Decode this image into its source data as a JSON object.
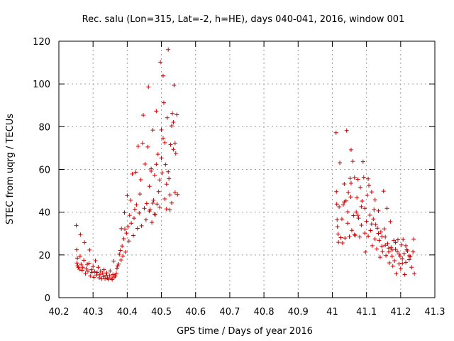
{
  "chart_data": {
    "type": "scatter",
    "title": "Rec. salu (Lon=315, Lat=-2, h=HE), days 040-041, 2016, window 001",
    "xlabel": "GPS time / Days of year 2016",
    "ylabel": "STEC from uqrg / TECUs",
    "xlim": [
      40.2,
      41.3
    ],
    "ylim": [
      0,
      120
    ],
    "xticks": [
      40.2,
      40.3,
      40.4,
      40.5,
      40.6,
      40.7,
      40.8,
      40.9,
      41,
      41.1,
      41.2,
      41.3
    ],
    "xtick_labels": [
      "40.2",
      "40.3",
      "40.4",
      "40.5",
      "40.6",
      "40.7",
      "40.8",
      "40.9",
      "41",
      "41.1",
      "41.2",
      "41.3"
    ],
    "yticks": [
      0,
      20,
      40,
      60,
      80,
      100,
      120
    ],
    "ytick_labels": [
      "0",
      "20",
      "40",
      "60",
      "80",
      "100",
      "120"
    ],
    "grid": true,
    "marker": "+",
    "series": [
      {
        "color": "#cc0000",
        "points": [
          [
            40.251,
            33.8
          ],
          [
            40.252,
            22.4
          ],
          [
            40.254,
            18.5
          ],
          [
            40.253,
            16.2
          ],
          [
            40.255,
            14.9
          ],
          [
            40.257,
            14.2
          ],
          [
            40.26,
            13.3
          ],
          [
            40.262,
            19.4
          ],
          [
            40.263,
            29.5
          ],
          [
            40.265,
            15.6
          ],
          [
            40.268,
            12.8
          ],
          [
            40.27,
            14.2
          ],
          [
            40.273,
            17.5
          ],
          [
            40.275,
            25.8
          ],
          [
            40.278,
            11.3
          ],
          [
            40.28,
            13.5
          ],
          [
            40.283,
            15.6
          ],
          [
            40.285,
            12.4
          ],
          [
            40.288,
            16.1
          ],
          [
            40.29,
            22.3
          ],
          [
            40.292,
            10.2
          ],
          [
            40.295,
            13.1
          ],
          [
            40.297,
            11.8
          ],
          [
            40.3,
            14.6
          ],
          [
            40.302,
            9.5
          ],
          [
            40.305,
            12.2
          ],
          [
            40.307,
            17.3
          ],
          [
            40.31,
            10.6
          ],
          [
            40.312,
            11.8
          ],
          [
            40.315,
            14.2
          ],
          [
            40.318,
            9.3
          ],
          [
            40.32,
            10.7
          ],
          [
            40.322,
            12.4
          ],
          [
            40.325,
            8.8
          ],
          [
            40.328,
            11.5
          ],
          [
            40.33,
            9.9
          ],
          [
            40.332,
            13.1
          ],
          [
            40.335,
            8.9
          ],
          [
            40.338,
            10.4
          ],
          [
            40.34,
            11.6
          ],
          [
            40.342,
            9.2
          ],
          [
            40.345,
            8.6
          ],
          [
            40.348,
            10.3
          ],
          [
            40.35,
            12.5
          ],
          [
            40.353,
            9.1
          ],
          [
            40.356,
            8.5
          ],
          [
            40.358,
            10.8
          ],
          [
            40.36,
            17.1
          ],
          [
            40.362,
            9.6
          ],
          [
            40.365,
            10.2
          ],
          [
            40.368,
            11.4
          ],
          [
            40.37,
            13.8
          ],
          [
            40.372,
            14.9
          ],
          [
            40.375,
            15.7
          ],
          [
            40.377,
            20.3
          ],
          [
            40.38,
            22.1
          ],
          [
            40.382,
            17.6
          ],
          [
            40.385,
            24.2
          ],
          [
            40.383,
            32.3
          ],
          [
            40.387,
            19.5
          ],
          [
            40.39,
            27.6
          ],
          [
            40.392,
            39.8
          ],
          [
            40.393,
            32.1
          ],
          [
            40.395,
            21.3
          ],
          [
            40.398,
            30.2
          ],
          [
            40.4,
            47.8
          ],
          [
            40.402,
            33.2
          ],
          [
            40.405,
            26.5
          ],
          [
            40.407,
            38.5
          ],
          [
            40.41,
            45.6
          ],
          [
            40.412,
            34.8
          ],
          [
            40.415,
            57.9
          ],
          [
            40.418,
            29.1
          ],
          [
            40.42,
            37.2
          ],
          [
            40.422,
            41.3
          ],
          [
            40.425,
            58.7
          ],
          [
            40.427,
            43.5
          ],
          [
            40.43,
            32.4
          ],
          [
            40.432,
            70.8
          ],
          [
            40.435,
            39.6
          ],
          [
            40.437,
            48.5
          ],
          [
            40.44,
            55.2
          ],
          [
            40.442,
            33.6
          ],
          [
            40.445,
            72.3
          ],
          [
            40.447,
            85.4
          ],
          [
            40.45,
            41.8
          ],
          [
            40.452,
            62.5
          ],
          [
            40.455,
            36.4
          ],
          [
            40.457,
            44.1
          ],
          [
            40.46,
            70.5
          ],
          [
            40.462,
            98.6
          ],
          [
            40.465,
            52.1
          ],
          [
            40.467,
            41.2
          ],
          [
            40.47,
            60.3
          ],
          [
            40.472,
            35.2
          ],
          [
            40.475,
            78.4
          ],
          [
            40.477,
            45.6
          ],
          [
            40.48,
            57.3
          ],
          [
            40.482,
            38.9
          ],
          [
            40.485,
            87.3
          ],
          [
            40.487,
            43.8
          ],
          [
            40.49,
            67.1
          ],
          [
            40.492,
            49.6
          ],
          [
            40.495,
            42.3
          ],
          [
            40.497,
            110.2
          ],
          [
            40.5,
            78.5
          ],
          [
            40.502,
            58.4
          ],
          [
            40.505,
            103.8
          ],
          [
            40.507,
            91.2
          ],
          [
            40.51,
            72.5
          ],
          [
            40.512,
            62.3
          ],
          [
            40.515,
            41.5
          ],
          [
            40.517,
            84.2
          ],
          [
            40.52,
            116.1
          ],
          [
            40.522,
            55.7
          ],
          [
            40.525,
            48.1
          ],
          [
            40.527,
            71.6
          ],
          [
            40.53,
            80.4
          ],
          [
            40.532,
            86.2
          ],
          [
            40.535,
            69.4
          ],
          [
            40.537,
            99.4
          ],
          [
            40.54,
            49.2
          ],
          [
            40.542,
            67.5
          ],
          [
            40.545,
            85.6
          ],
          [
            40.547,
            48.3
          ],
          [
            40.465,
            40.5
          ],
          [
            40.47,
            59.2
          ],
          [
            40.475,
            44.2
          ],
          [
            40.48,
            39.1
          ],
          [
            40.485,
            62.4
          ],
          [
            40.495,
            55.1
          ],
          [
            40.5,
            65.4
          ],
          [
            40.505,
            74.6
          ],
          [
            40.51,
            46.2
          ],
          [
            40.515,
            53.1
          ],
          [
            40.52,
            58.9
          ],
          [
            40.525,
            41.1
          ],
          [
            40.53,
            44.3
          ],
          [
            40.535,
            82.1
          ],
          [
            40.54,
            72.3
          ],
          [
            41.011,
            77.2
          ],
          [
            41.012,
            49.6
          ],
          [
            41.013,
            43.8
          ],
          [
            41.014,
            36.5
          ],
          [
            41.015,
            33.2
          ],
          [
            41.017,
            29.8
          ],
          [
            41.018,
            25.9
          ],
          [
            41.02,
            42.5
          ],
          [
            41.022,
            63.1
          ],
          [
            41.025,
            28.1
          ],
          [
            41.028,
            36.8
          ],
          [
            41.03,
            25.6
          ],
          [
            41.032,
            43.5
          ],
          [
            41.035,
            53.2
          ],
          [
            41.037,
            27.9
          ],
          [
            41.04,
            45.3
          ],
          [
            41.042,
            78.2
          ],
          [
            41.045,
            34.8
          ],
          [
            41.047,
            49.2
          ],
          [
            41.05,
            28.6
          ],
          [
            41.052,
            55.8
          ],
          [
            41.054,
            47.1
          ],
          [
            41.055,
            69.2
          ],
          [
            41.057,
            31.5
          ],
          [
            41.06,
            63.8
          ],
          [
            41.062,
            38.4
          ],
          [
            41.065,
            56.2
          ],
          [
            41.067,
            29.2
          ],
          [
            41.07,
            40.1
          ],
          [
            41.072,
            46.8
          ],
          [
            41.075,
            55.4
          ],
          [
            41.077,
            37.2
          ],
          [
            41.08,
            28.4
          ],
          [
            41.082,
            51.6
          ],
          [
            41.085,
            33.9
          ],
          [
            41.087,
            45.2
          ],
          [
            41.09,
            63.6
          ],
          [
            41.092,
            56.3
          ],
          [
            41.095,
            41.8
          ],
          [
            41.097,
            21.3
          ],
          [
            41.1,
            35.7
          ],
          [
            41.102,
            47.9
          ],
          [
            41.105,
            28.8
          ],
          [
            41.107,
            52.5
          ],
          [
            41.11,
            38.6
          ],
          [
            41.112,
            31.4
          ],
          [
            41.115,
            49.5
          ],
          [
            41.117,
            24.3
          ],
          [
            41.12,
            36.8
          ],
          [
            41.122,
            41.2
          ],
          [
            41.125,
            27.5
          ],
          [
            41.127,
            34.2
          ],
          [
            41.13,
            22.8
          ],
          [
            41.132,
            32.5
          ],
          [
            41.135,
            40.6
          ],
          [
            41.137,
            26.8
          ],
          [
            41.14,
            18.9
          ],
          [
            41.142,
            30.8
          ],
          [
            41.145,
            24.1
          ],
          [
            41.147,
            21.6
          ],
          [
            41.15,
            49.8
          ],
          [
            41.152,
            32.2
          ],
          [
            41.155,
            28.4
          ],
          [
            41.157,
            19.7
          ],
          [
            41.16,
            41.8
          ],
          [
            41.162,
            25.3
          ],
          [
            41.165,
            21.4
          ],
          [
            41.167,
            16.3
          ],
          [
            41.17,
            35.6
          ],
          [
            41.172,
            23.5
          ],
          [
            41.175,
            19.4
          ],
          [
            41.177,
            14.8
          ],
          [
            41.18,
            26.8
          ],
          [
            41.182,
            17.3
          ],
          [
            41.185,
            22.6
          ],
          [
            41.187,
            11.2
          ],
          [
            41.19,
            21.7
          ],
          [
            41.192,
            27.1
          ],
          [
            41.195,
            15.8
          ],
          [
            41.198,
            19.5
          ],
          [
            41.2,
            13.6
          ],
          [
            41.202,
            24.7
          ],
          [
            41.205,
            18.3
          ],
          [
            41.207,
            27.2
          ],
          [
            41.21,
            20.6
          ],
          [
            41.212,
            10.8
          ],
          [
            41.215,
            16.5
          ],
          [
            41.218,
            22.4
          ],
          [
            41.22,
            21.9
          ],
          [
            41.225,
            17.8
          ],
          [
            41.228,
            19.2
          ],
          [
            41.232,
            14.2
          ],
          [
            41.236,
            21.5
          ],
          [
            41.238,
            27.4
          ],
          [
            41.24,
            11.2
          ],
          [
            41.035,
            44.8
          ],
          [
            41.045,
            40.2
          ],
          [
            41.055,
            53.5
          ],
          [
            41.065,
            29.4
          ],
          [
            41.075,
            38.5
          ],
          [
            41.085,
            42.6
          ],
          [
            41.095,
            30.2
          ],
          [
            41.105,
            55.6
          ],
          [
            41.115,
            34.5
          ],
          [
            41.125,
            45.8
          ],
          [
            41.135,
            30.1
          ],
          [
            41.145,
            28.6
          ],
          [
            41.155,
            24.5
          ],
          [
            41.165,
            23.2
          ],
          [
            41.175,
            22.3
          ],
          [
            41.185,
            25.8
          ],
          [
            41.195,
            20.4
          ],
          [
            41.205,
            16.1
          ],
          [
            41.215,
            24.3
          ],
          [
            41.225,
            19.6
          ]
        ]
      }
    ]
  }
}
